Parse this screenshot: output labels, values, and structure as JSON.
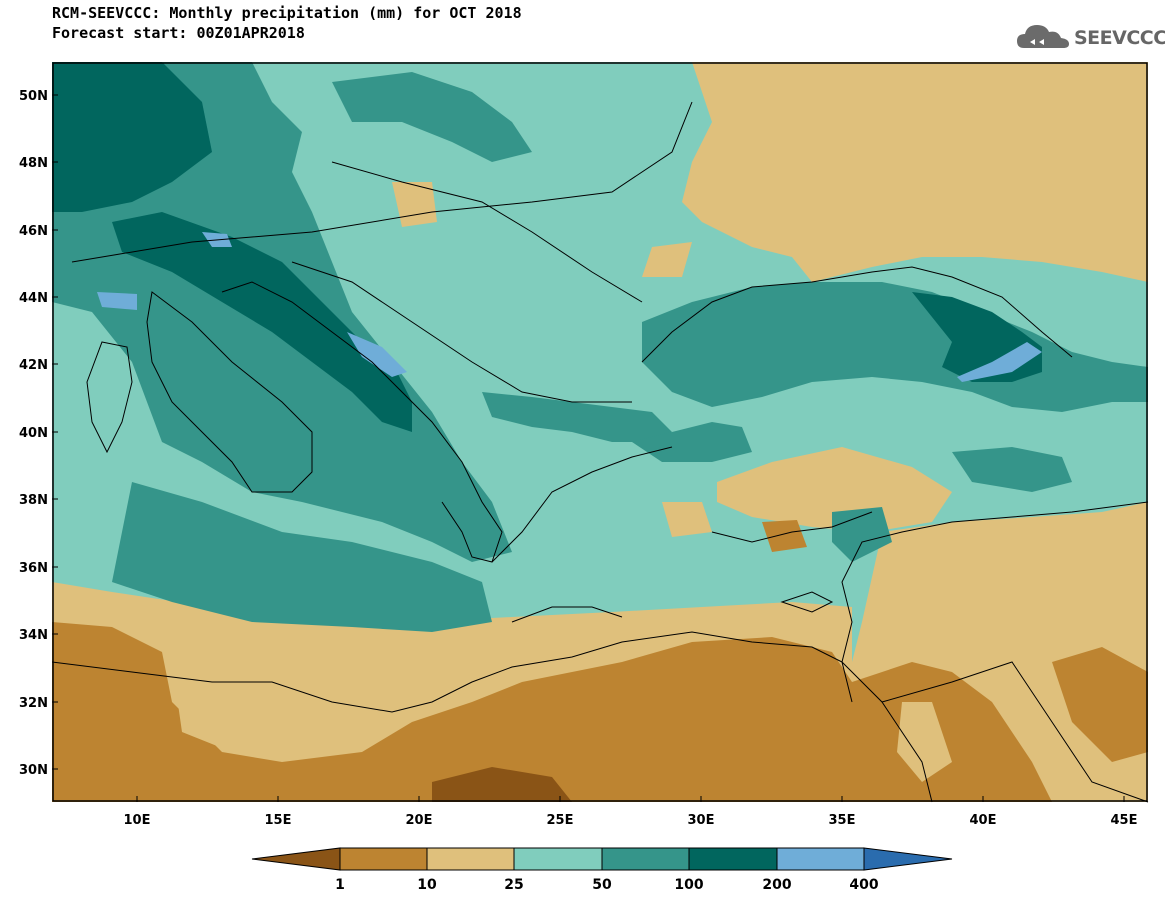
{
  "title": "RCM-SEEVCCC: Monthly precipitation (mm) for OCT 2018",
  "subtitle": "Forecast start: 00Z01APR2018",
  "logo_text": "SEEVCCC",
  "logo_icon": "cloud-icon",
  "axes": {
    "lat_labels": [
      "50N",
      "48N",
      "46N",
      "44N",
      "42N",
      "40N",
      "38N",
      "36N",
      "34N",
      "32N",
      "30N"
    ],
    "lon_labels": [
      "10E",
      "15E",
      "20E",
      "25E",
      "30E",
      "35E",
      "40E",
      "45E"
    ]
  },
  "colorbar": {
    "labels": [
      "1",
      "10",
      "25",
      "50",
      "100",
      "200",
      "400"
    ],
    "colors": [
      "#8a5416",
      "#bd8431",
      "#dfc07c",
      "#80cdbd",
      "#35958a",
      "#01665e",
      "#6fadd8",
      "#2a6cae"
    ]
  }
}
